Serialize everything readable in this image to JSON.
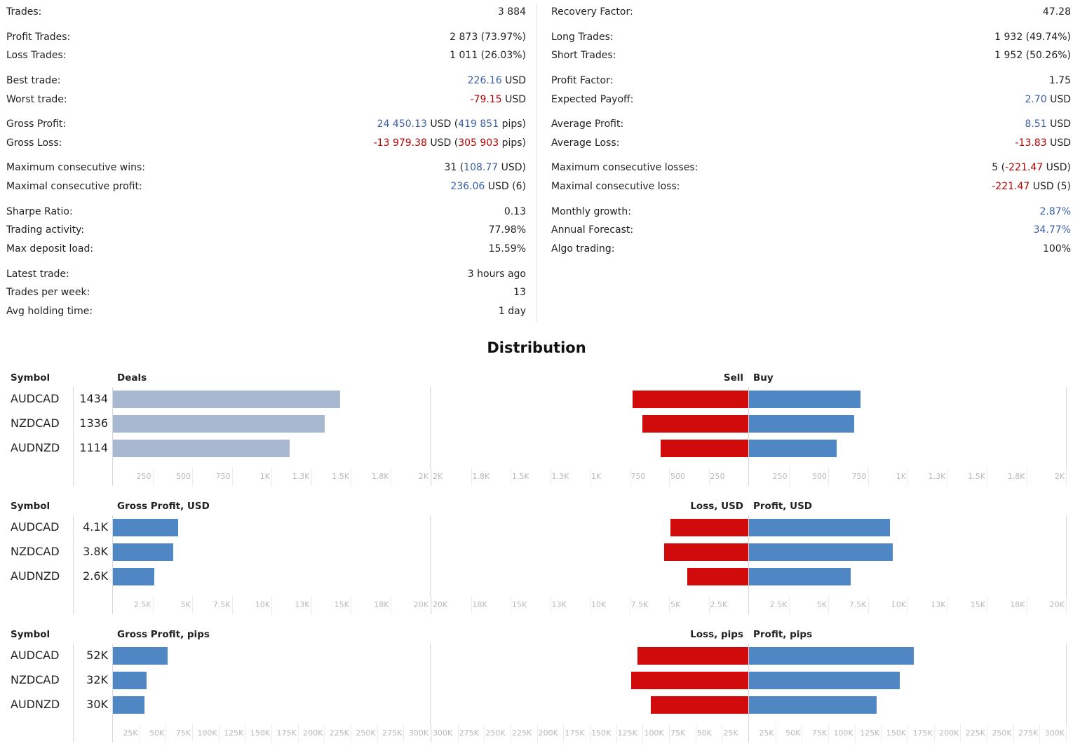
{
  "stats_left": [
    {
      "label": "Trades:",
      "parts": [
        {
          "t": "3 884"
        }
      ]
    },
    {
      "label": "Profit Trades:",
      "parts": [
        {
          "t": "2 873 (73.97%)"
        }
      ]
    },
    {
      "label": "Loss Trades:",
      "parts": [
        {
          "t": "1 011 (26.03%)"
        }
      ]
    },
    {
      "label": "Best trade:",
      "parts": [
        {
          "t": "226.16",
          "c": "blue"
        },
        {
          "t": " USD"
        }
      ]
    },
    {
      "label": "Worst trade:",
      "parts": [
        {
          "t": "-79.15",
          "c": "red"
        },
        {
          "t": " USD"
        }
      ]
    },
    {
      "label": "Gross Profit:",
      "parts": [
        {
          "t": "24 450.13",
          "c": "blue"
        },
        {
          "t": " USD ("
        },
        {
          "t": "419 851",
          "c": "blue"
        },
        {
          "t": " pips)"
        }
      ]
    },
    {
      "label": "Gross Loss:",
      "parts": [
        {
          "t": "-13 979.38",
          "c": "red"
        },
        {
          "t": " USD ("
        },
        {
          "t": "305 903",
          "c": "red"
        },
        {
          "t": " pips)"
        }
      ]
    },
    {
      "label": "Maximum consecutive wins:",
      "parts": [
        {
          "t": "31 ("
        },
        {
          "t": "108.77",
          "c": "blue"
        },
        {
          "t": " USD)"
        }
      ]
    },
    {
      "label": "Maximal consecutive profit:",
      "parts": [
        {
          "t": "236.06",
          "c": "blue"
        },
        {
          "t": " USD (6)"
        }
      ]
    },
    {
      "label": "Sharpe Ratio:",
      "parts": [
        {
          "t": "0.13"
        }
      ]
    },
    {
      "label": "Trading activity:",
      "parts": [
        {
          "t": "77.98%"
        }
      ]
    },
    {
      "label": "Max deposit load:",
      "parts": [
        {
          "t": "15.59%"
        }
      ]
    },
    {
      "label": "Latest trade:",
      "parts": [
        {
          "t": "3 hours ago"
        }
      ]
    },
    {
      "label": "Trades per week:",
      "parts": [
        {
          "t": "13"
        }
      ]
    },
    {
      "label": "Avg holding time:",
      "parts": [
        {
          "t": "1 day"
        }
      ]
    }
  ],
  "stats_right": [
    {
      "label": "Recovery Factor:",
      "parts": [
        {
          "t": "47.28"
        }
      ]
    },
    {
      "label": "Long Trades:",
      "parts": [
        {
          "t": "1 932 (49.74%)"
        }
      ]
    },
    {
      "label": "Short Trades:",
      "parts": [
        {
          "t": "1 952 (50.26%)"
        }
      ]
    },
    {
      "label": "Profit Factor:",
      "parts": [
        {
          "t": "1.75"
        }
      ]
    },
    {
      "label": "Expected Payoff:",
      "parts": [
        {
          "t": "2.70",
          "c": "blue"
        },
        {
          "t": " USD"
        }
      ]
    },
    {
      "label": "Average Profit:",
      "parts": [
        {
          "t": "8.51",
          "c": "blue"
        },
        {
          "t": " USD"
        }
      ]
    },
    {
      "label": "Average Loss:",
      "parts": [
        {
          "t": "-13.83",
          "c": "red"
        },
        {
          "t": " USD"
        }
      ]
    },
    {
      "label": "Maximum consecutive losses:",
      "parts": [
        {
          "t": "5 ("
        },
        {
          "t": "-221.47",
          "c": "red"
        },
        {
          "t": " USD)"
        }
      ]
    },
    {
      "label": "Maximal consecutive loss:",
      "parts": [
        {
          "t": "-221.47",
          "c": "red"
        },
        {
          "t": " USD (5)"
        }
      ]
    },
    {
      "label": "Monthly growth:",
      "parts": [
        {
          "t": "2.87%",
          "c": "blue"
        }
      ]
    },
    {
      "label": "Annual Forecast:",
      "parts": [
        {
          "t": "34.77%",
          "c": "blue"
        }
      ]
    },
    {
      "label": "Algo trading:",
      "parts": [
        {
          "t": "100%"
        }
      ]
    }
  ],
  "distribution_title": "Distribution",
  "colors": {
    "deals": "#a9b8d1",
    "blue": "#4f87c4",
    "red": "#d10b0b"
  },
  "chart_data": [
    {
      "type": "bar",
      "symbol_header": "Symbol",
      "left_title": "Deals",
      "sell_title": "Sell",
      "buy_title": "Buy",
      "categories": [
        "AUDCAD",
        "NZDCAD",
        "AUDNZD"
      ],
      "totals": [
        1434,
        1336,
        1114
      ],
      "total_labels": [
        "1434",
        "1336",
        "1114"
      ],
      "total_color": "deals",
      "left_max": 2000,
      "left_ticks": [
        "250",
        "500",
        "750",
        "1K",
        "1.3K",
        "1.5K",
        "1.8K",
        "2K"
      ],
      "sell": [
        730,
        670,
        555
      ],
      "buy": [
        705,
        665,
        555
      ],
      "side_max": 2000,
      "side_ticks": [
        "250",
        "500",
        "750",
        "1K",
        "1.3K",
        "1.5K",
        "1.8K",
        "2K"
      ]
    },
    {
      "type": "bar",
      "symbol_header": "Symbol",
      "left_title": "Gross Profit, USD",
      "sell_title": "Loss, USD",
      "buy_title": "Profit, USD",
      "categories": [
        "AUDCAD",
        "NZDCAD",
        "AUDNZD"
      ],
      "totals": [
        4100,
        3800,
        2600
      ],
      "total_labels": [
        "4.1K",
        "3.8K",
        "2.6K"
      ],
      "total_color": "blue",
      "left_max": 20000,
      "left_ticks": [
        "2.5K",
        "5K",
        "7.5K",
        "10K",
        "13K",
        "15K",
        "18K",
        "20K"
      ],
      "sell": [
        4900,
        5300,
        3850
      ],
      "buy": [
        8900,
        9050,
        6400
      ],
      "side_max": 20000,
      "side_ticks": [
        "2.5K",
        "5K",
        "7.5K",
        "10K",
        "13K",
        "15K",
        "18K",
        "20K"
      ]
    },
    {
      "type": "bar",
      "symbol_header": "Symbol",
      "left_title": "Gross Profit, pips",
      "sell_title": "Loss, pips",
      "buy_title": "Profit, pips",
      "categories": [
        "AUDCAD",
        "NZDCAD",
        "AUDNZD"
      ],
      "totals": [
        52000,
        32000,
        30000
      ],
      "total_labels": [
        "52K",
        "32K",
        "30K"
      ],
      "total_color": "blue",
      "left_max": 300000,
      "left_ticks": [
        "25K",
        "50K",
        "75K",
        "100K",
        "125K",
        "150K",
        "175K",
        "200K",
        "225K",
        "250K",
        "275K",
        "300K"
      ],
      "sell": [
        105000,
        111000,
        92000
      ],
      "buy": [
        156000,
        143000,
        121000
      ],
      "side_max": 300000,
      "side_ticks": [
        "25K",
        "50K",
        "75K",
        "100K",
        "125K",
        "150K",
        "175K",
        "200K",
        "225K",
        "250K",
        "275K",
        "300K"
      ]
    }
  ]
}
